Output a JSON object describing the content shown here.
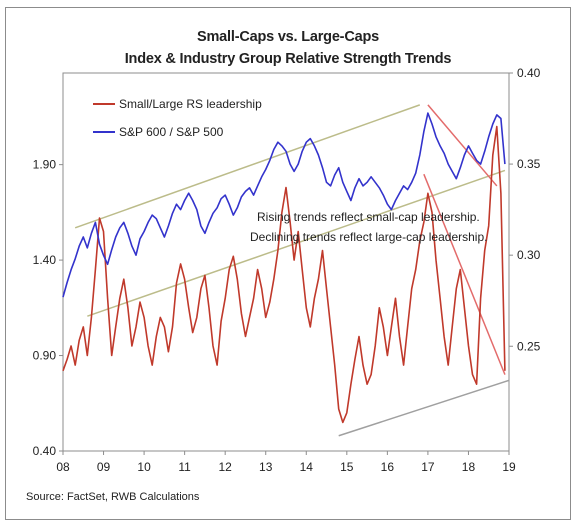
{
  "chart_data": {
    "type": "line",
    "title": "Small-Caps vs. Large-Caps",
    "subtitle": "Index & Industry Group Relative Strength Trends",
    "source": "Source: FactSet, RWB Calculations",
    "x_ticks": [
      "08",
      "09",
      "10",
      "11",
      "12",
      "13",
      "14",
      "15",
      "16",
      "17",
      "18",
      "19"
    ],
    "xlim": [
      2008,
      2019
    ],
    "y_left": {
      "ticks": [
        "0.40",
        "0.90",
        "1.40",
        "1.90"
      ],
      "ylim": [
        0.4,
        2.38
      ]
    },
    "y_right": {
      "ticks": [
        "0.40",
        "0.35",
        "0.30",
        "0.25"
      ],
      "ylim": [
        0.1925,
        0.4
      ]
    },
    "legend_position": "top-left",
    "annotations": [
      "Rising trends reflect small-cap leadership.",
      "Declining trends reflect large-cap leadership."
    ],
    "series": [
      {
        "name": "Small/Large RS leadership",
        "axis": "left",
        "color": "#c0392b",
        "x": [
          2008.0,
          2008.1,
          2008.2,
          2008.3,
          2008.4,
          2008.5,
          2008.6,
          2008.7,
          2008.8,
          2008.9,
          2009.0,
          2009.1,
          2009.2,
          2009.3,
          2009.4,
          2009.5,
          2009.6,
          2009.7,
          2009.8,
          2009.9,
          2010.0,
          2010.1,
          2010.2,
          2010.3,
          2010.4,
          2010.5,
          2010.6,
          2010.7,
          2010.8,
          2010.9,
          2011.0,
          2011.1,
          2011.2,
          2011.3,
          2011.4,
          2011.5,
          2011.6,
          2011.7,
          2011.8,
          2011.9,
          2012.0,
          2012.1,
          2012.2,
          2012.3,
          2012.4,
          2012.5,
          2012.6,
          2012.7,
          2012.8,
          2012.9,
          2013.0,
          2013.1,
          2013.2,
          2013.3,
          2013.4,
          2013.5,
          2013.6,
          2013.7,
          2013.8,
          2013.9,
          2014.0,
          2014.1,
          2014.2,
          2014.3,
          2014.4,
          2014.5,
          2014.6,
          2014.7,
          2014.8,
          2014.9,
          2015.0,
          2015.1,
          2015.2,
          2015.3,
          2015.4,
          2015.5,
          2015.6,
          2015.7,
          2015.8,
          2015.9,
          2016.0,
          2016.1,
          2016.2,
          2016.3,
          2016.4,
          2016.5,
          2016.6,
          2016.7,
          2016.8,
          2016.9,
          2017.0,
          2017.1,
          2017.2,
          2017.3,
          2017.4,
          2017.5,
          2017.6,
          2017.7,
          2017.8,
          2017.9,
          2018.0,
          2018.1,
          2018.2,
          2018.3,
          2018.4,
          2018.5,
          2018.6,
          2018.7,
          2018.8,
          2018.9
        ],
        "values": [
          0.82,
          0.88,
          0.95,
          0.85,
          0.98,
          1.05,
          0.9,
          1.1,
          1.35,
          1.62,
          1.55,
          1.2,
          0.9,
          1.05,
          1.2,
          1.3,
          1.15,
          0.95,
          1.05,
          1.18,
          1.1,
          0.95,
          0.85,
          1.0,
          1.1,
          1.05,
          0.92,
          1.05,
          1.28,
          1.38,
          1.3,
          1.15,
          1.02,
          1.1,
          1.25,
          1.32,
          1.15,
          0.95,
          0.85,
          1.08,
          1.2,
          1.35,
          1.42,
          1.3,
          1.12,
          1.0,
          1.1,
          1.2,
          1.35,
          1.25,
          1.1,
          1.18,
          1.3,
          1.45,
          1.65,
          1.78,
          1.6,
          1.4,
          1.55,
          1.35,
          1.15,
          1.05,
          1.2,
          1.3,
          1.45,
          1.25,
          1.05,
          0.85,
          0.62,
          0.55,
          0.6,
          0.75,
          0.88,
          1.0,
          0.85,
          0.75,
          0.8,
          0.95,
          1.15,
          1.05,
          0.9,
          1.05,
          1.2,
          1.0,
          0.85,
          1.05,
          1.25,
          1.35,
          1.5,
          1.6,
          1.75,
          1.65,
          1.4,
          1.2,
          1.0,
          0.85,
          1.05,
          1.25,
          1.35,
          1.15,
          0.95,
          0.8,
          0.75,
          1.2,
          1.45,
          1.58,
          1.95,
          2.1,
          1.75,
          0.82
        ]
      },
      {
        "name": "S&P 600 / S&P 500",
        "axis": "right",
        "color": "#3333cc",
        "x": [
          2008.0,
          2008.1,
          2008.2,
          2008.3,
          2008.4,
          2008.5,
          2008.6,
          2008.7,
          2008.8,
          2008.9,
          2009.0,
          2009.1,
          2009.2,
          2009.3,
          2009.4,
          2009.5,
          2009.6,
          2009.7,
          2009.8,
          2009.9,
          2010.0,
          2010.1,
          2010.2,
          2010.3,
          2010.4,
          2010.5,
          2010.6,
          2010.7,
          2010.8,
          2010.9,
          2011.0,
          2011.1,
          2011.2,
          2011.3,
          2011.4,
          2011.5,
          2011.6,
          2011.7,
          2011.8,
          2011.9,
          2012.0,
          2012.1,
          2012.2,
          2012.3,
          2012.4,
          2012.5,
          2012.6,
          2012.7,
          2012.8,
          2012.9,
          2013.0,
          2013.1,
          2013.2,
          2013.3,
          2013.4,
          2013.5,
          2013.6,
          2013.7,
          2013.8,
          2013.9,
          2014.0,
          2014.1,
          2014.2,
          2014.3,
          2014.4,
          2014.5,
          2014.6,
          2014.7,
          2014.8,
          2014.9,
          2015.0,
          2015.1,
          2015.2,
          2015.3,
          2015.4,
          2015.5,
          2015.6,
          2015.7,
          2015.8,
          2015.9,
          2016.0,
          2016.1,
          2016.2,
          2016.3,
          2016.4,
          2016.5,
          2016.6,
          2016.7,
          2016.8,
          2016.9,
          2017.0,
          2017.1,
          2017.2,
          2017.3,
          2017.4,
          2017.5,
          2017.6,
          2017.7,
          2017.8,
          2017.9,
          2018.0,
          2018.1,
          2018.2,
          2018.3,
          2018.4,
          2018.5,
          2018.6,
          2018.7,
          2018.8,
          2018.9
        ],
        "values": [
          0.277,
          0.285,
          0.292,
          0.298,
          0.305,
          0.31,
          0.304,
          0.312,
          0.318,
          0.306,
          0.3,
          0.295,
          0.303,
          0.31,
          0.315,
          0.318,
          0.312,
          0.305,
          0.3,
          0.309,
          0.313,
          0.318,
          0.322,
          0.32,
          0.315,
          0.31,
          0.316,
          0.323,
          0.328,
          0.325,
          0.33,
          0.334,
          0.33,
          0.325,
          0.316,
          0.312,
          0.318,
          0.323,
          0.326,
          0.331,
          0.333,
          0.328,
          0.322,
          0.326,
          0.332,
          0.335,
          0.337,
          0.333,
          0.338,
          0.343,
          0.347,
          0.352,
          0.358,
          0.362,
          0.36,
          0.357,
          0.35,
          0.346,
          0.35,
          0.357,
          0.362,
          0.364,
          0.36,
          0.355,
          0.348,
          0.34,
          0.338,
          0.344,
          0.348,
          0.34,
          0.335,
          0.33,
          0.337,
          0.342,
          0.338,
          0.34,
          0.343,
          0.34,
          0.337,
          0.333,
          0.328,
          0.325,
          0.33,
          0.334,
          0.338,
          0.336,
          0.34,
          0.345,
          0.355,
          0.368,
          0.378,
          0.372,
          0.365,
          0.36,
          0.356,
          0.35,
          0.346,
          0.342,
          0.348,
          0.355,
          0.36,
          0.356,
          0.352,
          0.35,
          0.357,
          0.365,
          0.372,
          0.377,
          0.375,
          0.35
        ]
      }
    ],
    "trendlines": [
      {
        "name": "blue-upper-channel",
        "axis": "right",
        "color": "#bcbc8a",
        "x": [
          2008.3,
          2016.8
        ],
        "y": [
          0.315,
          0.3825
        ]
      },
      {
        "name": "blue-lower-channel",
        "axis": "right",
        "color": "#bcbc8a",
        "x": [
          2008.6,
          2018.9
        ],
        "y": [
          0.2665,
          0.3465
        ]
      },
      {
        "name": "blue-decline-2017",
        "axis": "right",
        "color": "#e36b6b",
        "x": [
          2017.0,
          2018.7
        ],
        "y": [
          0.3825,
          0.338
        ]
      },
      {
        "name": "red-decline-2017",
        "axis": "left",
        "color": "#e36b6b",
        "x": [
          2016.9,
          2018.9
        ],
        "y": [
          1.85,
          0.8
        ]
      },
      {
        "name": "red-support-2015",
        "axis": "left",
        "color": "#a0a0a0",
        "x": [
          2014.8,
          2019.0
        ],
        "y": [
          0.48,
          0.77
        ]
      }
    ]
  }
}
